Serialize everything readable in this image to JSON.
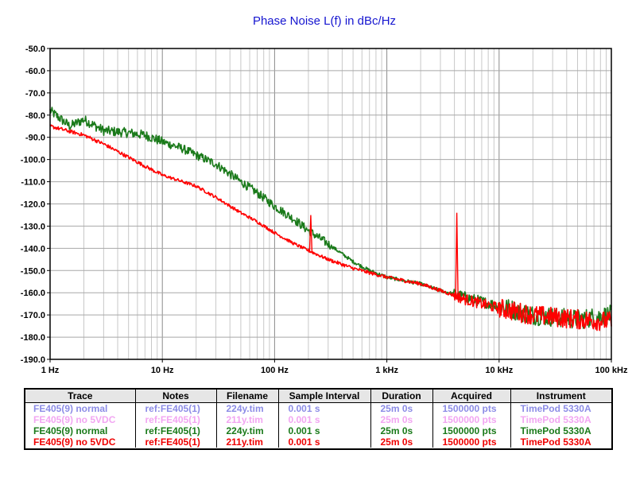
{
  "title": "Phase Noise L(f) in dBc/Hz",
  "chart_data": {
    "type": "line",
    "title": "Phase Noise L(f) in dBc/Hz",
    "x_scale": "log",
    "xlim": [
      1,
      100000
    ],
    "ylim": [
      -190,
      -50
    ],
    "x_ticks": [
      1,
      10,
      100,
      1000,
      10000,
      100000
    ],
    "x_tick_labels": [
      "1 Hz",
      "10 Hz",
      "100 Hz",
      "1 kHz",
      "10 kHz",
      "100 kHz"
    ],
    "y_ticks": [
      -50,
      -60,
      -70,
      -80,
      -90,
      -100,
      -110,
      -120,
      -130,
      -140,
      -150,
      -160,
      -170,
      -180,
      -190
    ],
    "y_tick_labels": [
      "-50.0",
      "-60.0",
      "-70.0",
      "-80.0",
      "-90.0",
      "-100.0",
      "-110.0",
      "-120.0",
      "-130.0",
      "-140.0",
      "-150.0",
      "-160.0",
      "-170.0",
      "-180.0",
      "-190.0"
    ],
    "grid": true,
    "series": [
      {
        "name": "FE405(9) normal",
        "color": "#1a7a1a",
        "points": [
          [
            1,
            -78
          ],
          [
            1.5,
            -85
          ],
          [
            2,
            -82
          ],
          [
            3,
            -87
          ],
          [
            5,
            -88
          ],
          [
            7,
            -89
          ],
          [
            10,
            -92
          ],
          [
            15,
            -95
          ],
          [
            20,
            -98
          ],
          [
            30,
            -102
          ],
          [
            50,
            -110
          ],
          [
            70,
            -115
          ],
          [
            100,
            -121
          ],
          [
            150,
            -127
          ],
          [
            200,
            -132
          ],
          [
            300,
            -138
          ],
          [
            500,
            -146
          ],
          [
            700,
            -150
          ],
          [
            1000,
            -153
          ],
          [
            2000,
            -156
          ],
          [
            3000,
            -159
          ],
          [
            5000,
            -162
          ],
          [
            10000,
            -166
          ],
          [
            20000,
            -170
          ],
          [
            50000,
            -172
          ],
          [
            100000,
            -170
          ]
        ]
      },
      {
        "name": "FE405(9) no 5VDC",
        "color": "#ff0000",
        "points": [
          [
            1,
            -85
          ],
          [
            2,
            -89
          ],
          [
            3,
            -93
          ],
          [
            5,
            -99
          ],
          [
            7,
            -103
          ],
          [
            10,
            -107
          ],
          [
            20,
            -112
          ],
          [
            30,
            -117
          ],
          [
            50,
            -124
          ],
          [
            70,
            -128
          ],
          [
            100,
            -133
          ],
          [
            150,
            -138
          ],
          [
            200,
            -141
          ],
          [
            300,
            -145
          ],
          [
            500,
            -149
          ],
          [
            700,
            -151
          ],
          [
            1000,
            -153
          ],
          [
            2000,
            -156
          ],
          [
            3000,
            -159
          ],
          [
            5000,
            -163
          ],
          [
            10000,
            -167
          ],
          [
            20000,
            -170
          ],
          [
            50000,
            -172
          ],
          [
            100000,
            -173
          ]
        ],
        "spurs": [
          [
            210,
            -125
          ],
          [
            4200,
            -124
          ]
        ]
      }
    ]
  },
  "legend": {
    "headers": [
      "Trace",
      "Notes",
      "Filename",
      "Sample Interval",
      "Duration",
      "Acquired",
      "Instrument"
    ],
    "rows": [
      {
        "cells": [
          "FE405(9) normal",
          "ref:FE405(1)",
          "224y.tim",
          "0.001 s",
          "25m 0s",
          "1500000 pts",
          "TimePod 5330A"
        ],
        "color": "#8c8ce6"
      },
      {
        "cells": [
          "FE405(9) no 5VDC",
          "ref:FE405(1)",
          "211y.tim",
          "0.001 s",
          "25m 0s",
          "1500000 pts",
          "TimePod 5330A"
        ],
        "color": "#f2a6f2"
      },
      {
        "cells": [
          "FE405(9) normal",
          "ref:FE405(1)",
          "224y.tim",
          "0.001 s",
          "25m 0s",
          "1500000 pts",
          "TimePod 5330A"
        ],
        "color": "#1a7a1a"
      },
      {
        "cells": [
          "FE405(9) no 5VDC",
          "ref:FE405(1)",
          "211y.tim",
          "0.001 s",
          "25m 0s",
          "1500000 pts",
          "TimePod 5330A"
        ],
        "color": "#ee0000"
      }
    ]
  }
}
